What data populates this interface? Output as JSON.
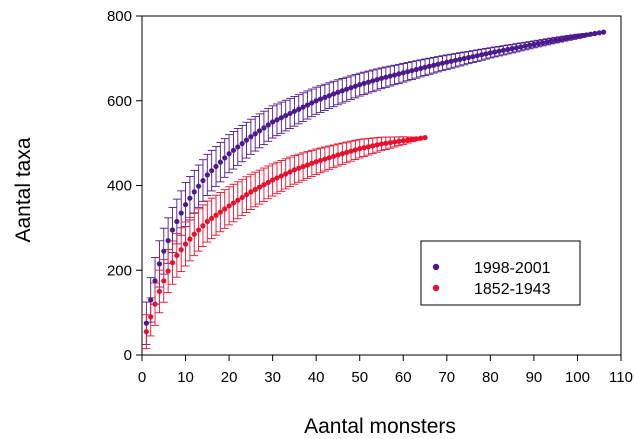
{
  "chart_data": {
    "type": "scatter",
    "xlabel": "Aantal monsters",
    "ylabel": "Aantal taxa",
    "xlim": [
      0,
      110
    ],
    "ylim": [
      0,
      800
    ],
    "x_ticks": [
      "0",
      "10",
      "20",
      "30",
      "40",
      "50",
      "60",
      "70",
      "80",
      "90",
      "100",
      "110"
    ],
    "y_ticks": [
      "0",
      "200",
      "400",
      "600",
      "800"
    ],
    "grid": false,
    "legend_position": "inside-right",
    "error_bars": true,
    "series": [
      {
        "name": "1998-2001",
        "color": "#4b1a8c",
        "n_points": 106,
        "anchors": [
          [
            1,
            75
          ],
          [
            2,
            130
          ],
          [
            3,
            175
          ],
          [
            4,
            215
          ],
          [
            5,
            245
          ],
          [
            6,
            270
          ],
          [
            7,
            295
          ],
          [
            8,
            315
          ],
          [
            9,
            335
          ],
          [
            10,
            355
          ],
          [
            12,
            385
          ],
          [
            15,
            425
          ],
          [
            20,
            475
          ],
          [
            25,
            515
          ],
          [
            30,
            550
          ],
          [
            35,
            575
          ],
          [
            40,
            600
          ],
          [
            45,
            620
          ],
          [
            50,
            638
          ],
          [
            55,
            653
          ],
          [
            60,
            666
          ],
          [
            65,
            679
          ],
          [
            70,
            691
          ],
          [
            75,
            702
          ],
          [
            80,
            713
          ],
          [
            85,
            723
          ],
          [
            90,
            733
          ],
          [
            95,
            743
          ],
          [
            100,
            752
          ],
          [
            106,
            762
          ]
        ],
        "error_anchors": [
          [
            1,
            50
          ],
          [
            3,
            55
          ],
          [
            10,
            52
          ],
          [
            20,
            45
          ],
          [
            30,
            38
          ],
          [
            40,
            32
          ],
          [
            50,
            27
          ],
          [
            60,
            22
          ],
          [
            70,
            17
          ],
          [
            80,
            12
          ],
          [
            90,
            8
          ],
          [
            100,
            5
          ],
          [
            106,
            0
          ]
        ]
      },
      {
        "name": "1852-1943",
        "color": "#e8102e",
        "n_points": 65,
        "anchors": [
          [
            1,
            55
          ],
          [
            2,
            90
          ],
          [
            3,
            120
          ],
          [
            4,
            150
          ],
          [
            5,
            175
          ],
          [
            6,
            198
          ],
          [
            7,
            218
          ],
          [
            8,
            235
          ],
          [
            10,
            262
          ],
          [
            12,
            285
          ],
          [
            15,
            315
          ],
          [
            20,
            352
          ],
          [
            25,
            385
          ],
          [
            30,
            413
          ],
          [
            35,
            437
          ],
          [
            40,
            456
          ],
          [
            45,
            472
          ],
          [
            50,
            487
          ],
          [
            55,
            498
          ],
          [
            60,
            506
          ],
          [
            65,
            513
          ]
        ],
        "error_anchors": [
          [
            1,
            40
          ],
          [
            3,
            50
          ],
          [
            10,
            52
          ],
          [
            20,
            45
          ],
          [
            30,
            38
          ],
          [
            40,
            30
          ],
          [
            50,
            22
          ],
          [
            55,
            16
          ],
          [
            60,
            9
          ],
          [
            65,
            0
          ]
        ]
      }
    ]
  }
}
